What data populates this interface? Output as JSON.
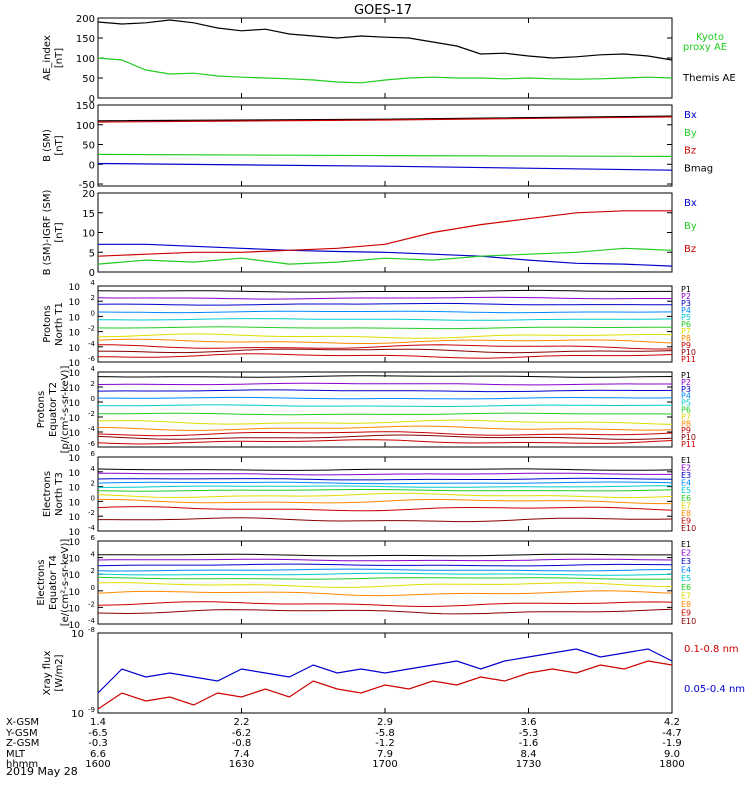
{
  "title": "GOES-17",
  "date": "2019 May 28",
  "colors": {
    "black": "#000000",
    "blue": "#0000cc",
    "green": "#22cc22",
    "red": "#cc0000",
    "orange": "#ff8800",
    "yellow": "#dddd00",
    "cyan": "#00cccc",
    "purple": "#8800cc",
    "darkred": "#880000",
    "mid_blue": "#0088ff"
  },
  "chart_data": [
    {
      "type": "line",
      "id": "ae",
      "ylabel": [
        "AE_index",
        "[nT]"
      ],
      "ylim": [
        0,
        200
      ],
      "ticks": [
        0,
        50,
        100,
        150,
        200
      ],
      "tick_labels": [
        "0",
        "50",
        "100",
        "150",
        "200"
      ],
      "legend": [
        {
          "label": "Kyoto",
          "color": "green"
        },
        {
          "label": "proxy AE",
          "color": "green"
        },
        {
          "label": "Themis AE",
          "color": "black"
        }
      ],
      "series": [
        {
          "name": "Themis AE",
          "color": "black",
          "x": [
            1600,
            1605,
            1610,
            1615,
            1620,
            1625,
            1630,
            1635,
            1640,
            1645,
            1650,
            1655,
            1700,
            1705,
            1710,
            1715,
            1720,
            1725,
            1730,
            1735,
            1740,
            1745,
            1750,
            1755,
            1800
          ],
          "y": [
            190,
            185,
            188,
            195,
            188,
            175,
            168,
            172,
            160,
            155,
            150,
            155,
            152,
            150,
            140,
            130,
            110,
            112,
            105,
            100,
            103,
            108,
            110,
            105,
            95
          ]
        },
        {
          "name": "Kyoto proxy AE",
          "color": "green",
          "x": [
            1600,
            1605,
            1610,
            1615,
            1620,
            1625,
            1630,
            1635,
            1640,
            1645,
            1650,
            1655,
            1700,
            1705,
            1710,
            1715,
            1720,
            1725,
            1730,
            1735,
            1740,
            1745,
            1750,
            1755,
            1800
          ],
          "y": [
            100,
            95,
            70,
            60,
            62,
            55,
            52,
            50,
            48,
            45,
            40,
            38,
            45,
            50,
            52,
            50,
            50,
            48,
            50,
            48,
            47,
            48,
            50,
            52,
            50
          ]
        }
      ]
    },
    {
      "type": "line",
      "id": "bsm",
      "ylabel": [
        "B (SM)",
        "[nT]"
      ],
      "ylim": [
        -55,
        150
      ],
      "ticks": [
        -50,
        0,
        50,
        100,
        150
      ],
      "tick_labels": [
        "-50",
        "0",
        "50",
        "100",
        "150"
      ],
      "legend": [
        {
          "label": "Bx",
          "color": "blue"
        },
        {
          "label": "By",
          "color": "green"
        },
        {
          "label": "Bz",
          "color": "red"
        },
        {
          "label": "Bmag",
          "color": "black"
        }
      ],
      "series": [
        {
          "name": "Bmag",
          "color": "black",
          "x": [
            1600,
            1700,
            1800
          ],
          "y": [
            110,
            114,
            122
          ]
        },
        {
          "name": "Bz",
          "color": "red",
          "x": [
            1600,
            1700,
            1800
          ],
          "y": [
            107,
            112,
            120
          ]
        },
        {
          "name": "By",
          "color": "green",
          "x": [
            1600,
            1700,
            1800
          ],
          "y": [
            25,
            22,
            20
          ]
        },
        {
          "name": "Bx",
          "color": "blue",
          "x": [
            1600,
            1700,
            1800
          ],
          "y": [
            2,
            -5,
            -15
          ]
        }
      ]
    },
    {
      "type": "line",
      "id": "bdiff",
      "ylabel": [
        "B (SM)-IGRF (SM)",
        "[nT]"
      ],
      "ylim": [
        0,
        20
      ],
      "ticks": [
        0,
        5,
        10,
        15,
        20
      ],
      "tick_labels": [
        "0",
        "5",
        "10",
        "15",
        "20"
      ],
      "legend": [
        {
          "label": "Bx",
          "color": "blue"
        },
        {
          "label": "By",
          "color": "green"
        },
        {
          "label": "Bz",
          "color": "red"
        }
      ],
      "series": [
        {
          "name": "Bx",
          "color": "blue",
          "x": [
            1600,
            1610,
            1620,
            1630,
            1640,
            1650,
            1700,
            1710,
            1720,
            1730,
            1740,
            1750,
            1800
          ],
          "y": [
            7,
            7,
            6.5,
            6,
            5.5,
            5.2,
            5,
            4.5,
            4,
            3,
            2.2,
            2,
            1.5
          ]
        },
        {
          "name": "By",
          "color": "green",
          "x": [
            1600,
            1610,
            1620,
            1630,
            1640,
            1650,
            1700,
            1710,
            1720,
            1730,
            1740,
            1750,
            1800
          ],
          "y": [
            2,
            3,
            2.5,
            3.5,
            2,
            2.5,
            3.5,
            3,
            4,
            4.5,
            5,
            6,
            5.5
          ]
        },
        {
          "name": "Bz",
          "color": "red",
          "x": [
            1600,
            1610,
            1620,
            1630,
            1640,
            1650,
            1700,
            1710,
            1720,
            1730,
            1740,
            1750,
            1800
          ],
          "y": [
            4,
            4.5,
            5,
            5,
            5.5,
            6,
            7,
            10,
            12,
            13.5,
            15,
            15.5,
            15.5
          ]
        }
      ]
    },
    {
      "type": "line",
      "id": "protons_t1",
      "log": true,
      "ylabel": [
        "Protons",
        "North T1"
      ],
      "ylim_exp": [
        -6,
        4
      ],
      "tick_exp": [
        -6,
        -4,
        -2,
        0,
        2,
        4
      ],
      "channels": [
        {
          "name": "P1",
          "color": "black",
          "exp": 3.3
        },
        {
          "name": "P2",
          "color": "purple",
          "exp": 2.4
        },
        {
          "name": "P3",
          "color": "blue",
          "exp": 1.6
        },
        {
          "name": "P4",
          "color": "mid_blue",
          "exp": 0.6
        },
        {
          "name": "P5",
          "color": "cyan",
          "exp": -0.4
        },
        {
          "name": "P6",
          "color": "green",
          "exp": -1.5
        },
        {
          "name": "P7",
          "color": "yellow",
          "exp": -2.6
        },
        {
          "name": "P8",
          "color": "orange",
          "exp": -3.3
        },
        {
          "name": "P9",
          "color": "red",
          "exp": -4.0
        },
        {
          "name": "P10",
          "color": "darkred",
          "exp": -4.5
        },
        {
          "name": "P11",
          "color": "red",
          "exp": -5.2
        }
      ]
    },
    {
      "type": "line",
      "id": "protons_t2",
      "log": true,
      "ylabel": [
        "Protons",
        "Equator T2",
        "[p/(cm²-s-sr-keV)]"
      ],
      "ylim_exp": [
        -6,
        4
      ],
      "tick_exp": [
        -6,
        -4,
        -2,
        0,
        2,
        4
      ],
      "channels": [
        {
          "name": "P1",
          "color": "black",
          "exp": 3.4
        },
        {
          "name": "P2",
          "color": "purple",
          "exp": 2.4
        },
        {
          "name": "P3",
          "color": "blue",
          "exp": 1.5
        },
        {
          "name": "P4",
          "color": "mid_blue",
          "exp": 0.5
        },
        {
          "name": "P5",
          "color": "cyan",
          "exp": -0.5
        },
        {
          "name": "P6",
          "color": "green",
          "exp": -1.6
        },
        {
          "name": "P7",
          "color": "yellow",
          "exp": -2.7
        },
        {
          "name": "P8",
          "color": "orange",
          "exp": -3.5
        },
        {
          "name": "P9",
          "color": "red",
          "exp": -4.2
        },
        {
          "name": "P10",
          "color": "darkred",
          "exp": -4.7
        },
        {
          "name": "P11",
          "color": "red",
          "exp": -5.3
        }
      ]
    },
    {
      "type": "line",
      "id": "electrons_t3",
      "log": true,
      "ylabel": [
        "Electrons",
        "North T3"
      ],
      "ylim_exp": [
        -4,
        6
      ],
      "tick_exp": [
        -4,
        -2,
        0,
        2,
        4,
        6
      ],
      "channels": [
        {
          "name": "E1",
          "color": "black",
          "exp": 4.3
        },
        {
          "name": "E2",
          "color": "purple",
          "exp": 3.7
        },
        {
          "name": "E3",
          "color": "blue",
          "exp": 3.0
        },
        {
          "name": "E4",
          "color": "mid_blue",
          "exp": 2.5
        },
        {
          "name": "E5",
          "color": "cyan",
          "exp": 2.0
        },
        {
          "name": "E6",
          "color": "green",
          "exp": 1.5
        },
        {
          "name": "E7",
          "color": "yellow",
          "exp": 0.8
        },
        {
          "name": "E8",
          "color": "orange",
          "exp": 0.0
        },
        {
          "name": "E9",
          "color": "red",
          "exp": -1.0
        },
        {
          "name": "E10",
          "color": "darkred",
          "exp": -2.5
        }
      ]
    },
    {
      "type": "line",
      "id": "electrons_t4",
      "log": true,
      "ylabel": [
        "Electrons",
        "Equator T4",
        "[e/(cm²-s-sr-keV)]"
      ],
      "ylim_exp": [
        -4,
        6
      ],
      "tick_exp": [
        -4,
        -2,
        0,
        2,
        4,
        6
      ],
      "channels": [
        {
          "name": "E1",
          "color": "black",
          "exp": 4.3
        },
        {
          "name": "E2",
          "color": "purple",
          "exp": 3.7
        },
        {
          "name": "E3",
          "color": "blue",
          "exp": 3.1
        },
        {
          "name": "E4",
          "color": "mid_blue",
          "exp": 2.5
        },
        {
          "name": "E5",
          "color": "cyan",
          "exp": 2.0
        },
        {
          "name": "E6",
          "color": "green",
          "exp": 1.5
        },
        {
          "name": "E7",
          "color": "yellow",
          "exp": 0.7
        },
        {
          "name": "E8",
          "color": "orange",
          "exp": -0.3
        },
        {
          "name": "E9",
          "color": "red",
          "exp": -1.6
        },
        {
          "name": "E10",
          "color": "darkred",
          "exp": -2.5
        }
      ]
    },
    {
      "type": "line",
      "id": "xray",
      "log": true,
      "ylabel": [
        "Xray flux",
        "[W/m2]"
      ],
      "ylim_exp": [
        -9,
        -8
      ],
      "tick_labels": [
        "10",
        "10"
      ],
      "tick_exps": [
        "-8",
        "-9"
      ],
      "legend": [
        {
          "label": "0.1-0.8 nm",
          "color": "red"
        },
        {
          "label": "0.05-0.4 nm",
          "color": "blue"
        }
      ],
      "series": [
        {
          "name": "0.05-0.4 nm",
          "color": "blue",
          "x": [
            1600,
            1605,
            1610,
            1615,
            1620,
            1625,
            1630,
            1635,
            1640,
            1645,
            1650,
            1655,
            1700,
            1705,
            1710,
            1715,
            1720,
            1725,
            1730,
            1735,
            1740,
            1745,
            1750,
            1755,
            1800
          ],
          "y": [
            -8.75,
            -8.45,
            -8.55,
            -8.5,
            -8.55,
            -8.6,
            -8.45,
            -8.5,
            -8.55,
            -8.4,
            -8.5,
            -8.45,
            -8.5,
            -8.45,
            -8.4,
            -8.35,
            -8.45,
            -8.35,
            -8.3,
            -8.25,
            -8.2,
            -8.3,
            -8.25,
            -8.2,
            -8.35
          ]
        },
        {
          "name": "0.1-0.8 nm",
          "color": "red",
          "x": [
            1600,
            1605,
            1610,
            1615,
            1620,
            1625,
            1630,
            1635,
            1640,
            1645,
            1650,
            1655,
            1700,
            1705,
            1710,
            1715,
            1720,
            1725,
            1730,
            1735,
            1740,
            1745,
            1750,
            1755,
            1800
          ],
          "y": [
            -8.95,
            -8.75,
            -8.85,
            -8.8,
            -8.9,
            -8.75,
            -8.8,
            -8.7,
            -8.8,
            -8.6,
            -8.7,
            -8.75,
            -8.65,
            -8.7,
            -8.6,
            -8.65,
            -8.55,
            -8.6,
            -8.5,
            -8.45,
            -8.5,
            -8.4,
            -8.45,
            -8.35,
            -8.4
          ]
        }
      ]
    }
  ],
  "x_axis": {
    "row_labels": [
      "X-GSM",
      "Y-GSM",
      "Z-GSM",
      "MLT",
      "hhmm"
    ],
    "ticks": [
      {
        "x": 1600,
        "values": [
          "1.4",
          "-6.5",
          "-0.3",
          "6.6",
          "1600"
        ]
      },
      {
        "x": 1630,
        "values": [
          "2.2",
          "-6.2",
          "-0.8",
          "7.4",
          "1630"
        ]
      },
      {
        "x": 1700,
        "values": [
          "2.9",
          "-5.8",
          "-1.2",
          "7.9",
          "1700"
        ]
      },
      {
        "x": 1730,
        "values": [
          "3.6",
          "-5.3",
          "-1.6",
          "8.4",
          "1730"
        ]
      },
      {
        "x": 1800,
        "values": [
          "4.2",
          "-4.7",
          "-1.9",
          "9.0",
          "1800"
        ]
      }
    ]
  }
}
